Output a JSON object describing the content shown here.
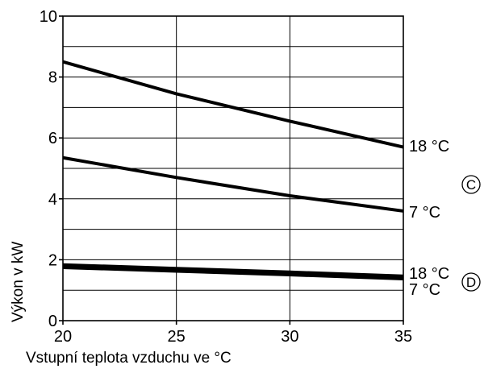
{
  "chart_data": {
    "type": "line",
    "xlabel": "Vstupní teplota vzduchu ve °C",
    "ylabel": "Výkon v kW",
    "xlim": [
      20,
      35
    ],
    "ylim": [
      0,
      10
    ],
    "x_ticks": [
      20,
      25,
      30,
      35
    ],
    "y_ticks": [
      0,
      2,
      4,
      6,
      8,
      10
    ],
    "grid": true,
    "series": [
      {
        "name": "18 °C",
        "x": [
          20,
          25,
          30,
          35
        ],
        "y": [
          8.5,
          7.45,
          6.55,
          5.7
        ],
        "group": "C"
      },
      {
        "name": "7 °C",
        "x": [
          20,
          25,
          30,
          35
        ],
        "y": [
          5.35,
          4.7,
          4.1,
          3.6
        ],
        "group": "C"
      },
      {
        "name": "18 °C",
        "x": [
          20,
          25,
          30,
          35
        ],
        "y": [
          1.82,
          1.7,
          1.58,
          1.45
        ],
        "group": "D"
      },
      {
        "name": "7 °C",
        "x": [
          20,
          25,
          30,
          35
        ],
        "y": [
          1.76,
          1.64,
          1.52,
          1.39
        ],
        "group": "D"
      }
    ],
    "markers": [
      "C",
      "D"
    ]
  }
}
